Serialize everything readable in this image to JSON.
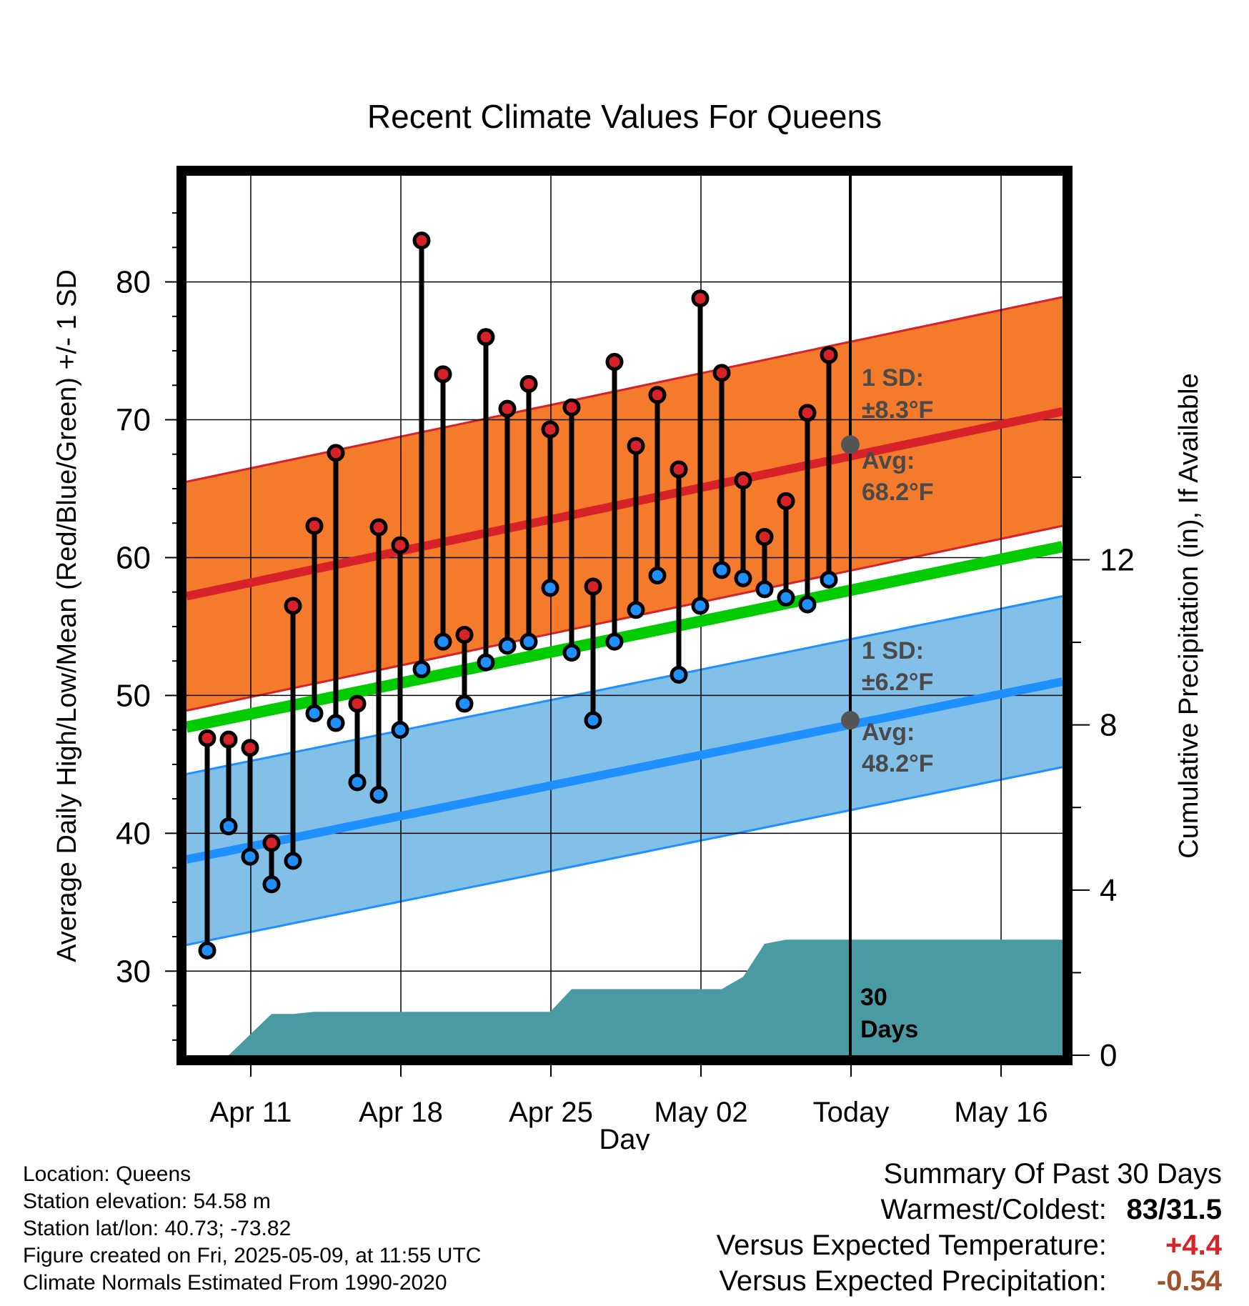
{
  "chart_data": {
    "type": "range-bar",
    "title": "Recent Climate Values For Queens",
    "xlabel": "Day",
    "ylabel": "Average Daily High/Low/Mean (Red/Blue/Green) +/- 1 SD",
    "ylabel_right": "Cumulative Precipitation (in), If Available",
    "x_ticks": [
      "Apr 11",
      "Apr 18",
      "Apr 25",
      "May 02",
      "Today",
      "May 16"
    ],
    "y_ticks": [
      30,
      40,
      50,
      60,
      70,
      80
    ],
    "y2_ticks": [
      0,
      4,
      8,
      12
    ],
    "ylim": [
      23.9,
      87.7
    ],
    "y2lim": [
      0,
      21.3
    ],
    "x_range_days": [
      "Apr 8",
      "May 17"
    ],
    "today": "May 09",
    "days": [
      "Apr 09",
      "Apr 10",
      "Apr 11",
      "Apr 12",
      "Apr 13",
      "Apr 14",
      "Apr 15",
      "Apr 16",
      "Apr 17",
      "Apr 18",
      "Apr 19",
      "Apr 20",
      "Apr 21",
      "Apr 22",
      "Apr 23",
      "Apr 24",
      "Apr 25",
      "Apr 26",
      "Apr 27",
      "Apr 28",
      "Apr 29",
      "Apr 30",
      "May 01",
      "May 02",
      "May 03",
      "May 04",
      "May 05",
      "May 06",
      "May 07",
      "May 08"
    ],
    "highs": [
      46.9,
      46.8,
      46.2,
      39.3,
      56.5,
      62.3,
      67.6,
      49.4,
      62.2,
      60.9,
      83.0,
      73.3,
      54.4,
      76.0,
      70.8,
      72.6,
      69.3,
      70.9,
      57.9,
      74.2,
      68.1,
      71.8,
      66.4,
      78.8,
      73.4,
      65.6,
      61.5,
      64.1,
      70.5,
      74.7
    ],
    "lows": [
      31.5,
      40.5,
      38.3,
      36.3,
      38.0,
      48.7,
      48.0,
      43.7,
      42.8,
      47.5,
      51.9,
      53.9,
      49.4,
      52.4,
      53.6,
      53.9,
      57.8,
      53.1,
      48.2,
      53.9,
      56.2,
      58.7,
      51.5,
      56.5,
      59.1,
      58.5,
      57.7,
      57.1,
      56.6,
      58.4
    ],
    "normal_high": {
      "start": 57.2,
      "end": 70.6,
      "sd": 8.3
    },
    "normal_low": {
      "start": 38.1,
      "end": 51.0,
      "sd": 6.2
    },
    "normal_mean": {
      "start": 47.7,
      "end": 60.8
    },
    "precip_cumulative": [
      0,
      0,
      0.5,
      1.0,
      1.0,
      1.05,
      1.05,
      1.05,
      1.05,
      1.05,
      1.05,
      1.05,
      1.05,
      1.05,
      1.05,
      1.05,
      1.05,
      1.6,
      1.6,
      1.6,
      1.6,
      1.6,
      1.6,
      1.6,
      1.6,
      1.9,
      2.7,
      2.8,
      2.8,
      2.8,
      2.8
    ],
    "annotations": {
      "high_sd_label": "1 SD:",
      "high_sd_value": "±8.3°F",
      "high_avg_label": "Avg:",
      "high_avg_value": "68.2°F",
      "low_sd_label": "1 SD:",
      "low_sd_value": "±6.2°F",
      "low_avg_label": "Avg:",
      "low_avg_value": "48.2°F",
      "today_avg_high": 68.2,
      "today_avg_low": 48.2,
      "window_label_1": "30",
      "window_label_2": "Days"
    },
    "colors": {
      "high_band": "#f47a2c",
      "high_line": "#d62228",
      "low_band": "#82c0e7",
      "low_line": "#1e90ff",
      "mean_line": "#00cc00",
      "precip": "#4a9aa3",
      "high_dot": "#d62228",
      "low_dot": "#1e90ff"
    }
  },
  "footer": {
    "location": "Location: Queens",
    "elevation": "Station elevation: 54.58 m",
    "latlon": "Station lat/lon: 40.73; -73.82",
    "created": "Figure created on Fri, 2025-05-09, at 11:55 UTC",
    "normals": "Climate Normals Estimated From 1990-2020"
  },
  "summary": {
    "title": "Summary Of Past 30 Days",
    "warmest_label": "Warmest/Coldest:",
    "warmest_value": "83/31.5",
    "temp_label": "Versus Expected Temperature:",
    "temp_value": "+4.4",
    "temp_color": "#d62228",
    "precip_label": "Versus Expected Precipitation:",
    "precip_value": "-0.54",
    "precip_color": "#a0522d"
  }
}
